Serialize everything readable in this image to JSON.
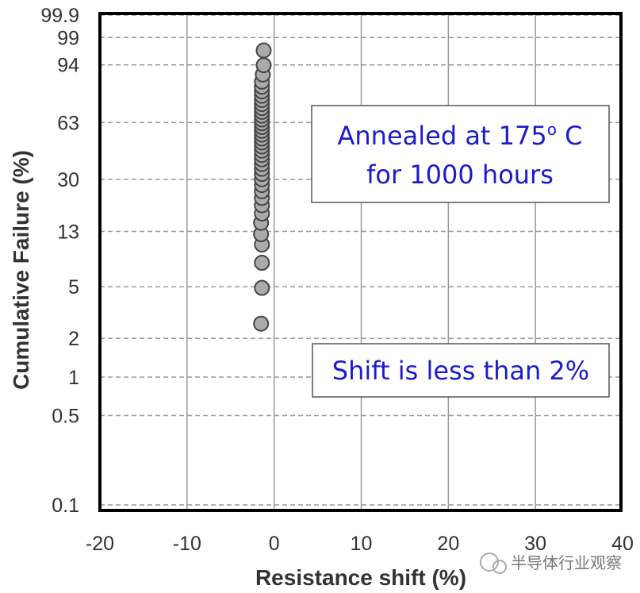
{
  "chart_data": {
    "type": "scatter",
    "title": "",
    "xlabel": "Resistance shift (%)",
    "ylabel": "Cumulative Failure (%)",
    "xlim": [
      -20,
      40
    ],
    "ylim": [
      0.1,
      99.9
    ],
    "yscale": "weibull-probability",
    "x_ticks": [
      "-20",
      "-10",
      "0",
      "10",
      "20",
      "30",
      "40"
    ],
    "y_ticks": [
      "0.1",
      "0.5",
      "1",
      "2",
      "5",
      "13",
      "30",
      "63",
      "94",
      "99",
      "99.9"
    ],
    "grid": true,
    "points": [
      {
        "x": -1.5,
        "y": 2.6
      },
      {
        "x": -1.4,
        "y": 4.9
      },
      {
        "x": -1.4,
        "y": 7.6
      },
      {
        "x": -1.4,
        "y": 10.4
      },
      {
        "x": -1.5,
        "y": 12.4
      },
      {
        "x": -1.5,
        "y": 15.0
      },
      {
        "x": -1.4,
        "y": 17.5
      },
      {
        "x": -1.4,
        "y": 20.0
      },
      {
        "x": -1.4,
        "y": 22.5
      },
      {
        "x": -1.4,
        "y": 25.0
      },
      {
        "x": -1.4,
        "y": 27.5
      },
      {
        "x": -1.4,
        "y": 30.0
      },
      {
        "x": -1.4,
        "y": 32.5
      },
      {
        "x": -1.4,
        "y": 35.0
      },
      {
        "x": -1.4,
        "y": 37.5
      },
      {
        "x": -1.4,
        "y": 40.0
      },
      {
        "x": -1.4,
        "y": 42.5
      },
      {
        "x": -1.4,
        "y": 45.0
      },
      {
        "x": -1.4,
        "y": 47.5
      },
      {
        "x": -1.4,
        "y": 50.0
      },
      {
        "x": -1.4,
        "y": 52.5
      },
      {
        "x": -1.4,
        "y": 55.0
      },
      {
        "x": -1.4,
        "y": 57.5
      },
      {
        "x": -1.4,
        "y": 60.0
      },
      {
        "x": -1.4,
        "y": 62.5
      },
      {
        "x": -1.4,
        "y": 65.0
      },
      {
        "x": -1.4,
        "y": 67.5
      },
      {
        "x": -1.4,
        "y": 70.0
      },
      {
        "x": -1.4,
        "y": 72.5
      },
      {
        "x": -1.4,
        "y": 75.0
      },
      {
        "x": -1.4,
        "y": 77.5
      },
      {
        "x": -1.4,
        "y": 80.0
      },
      {
        "x": -1.4,
        "y": 82.5
      },
      {
        "x": -1.4,
        "y": 85.0
      },
      {
        "x": -1.4,
        "y": 87.5
      },
      {
        "x": -1.3,
        "y": 90.6
      },
      {
        "x": -1.2,
        "y": 93.9
      },
      {
        "x": -1.2,
        "y": 97.4
      }
    ],
    "annotations": [
      {
        "line1": "Annealed at 175",
        "sup": "o",
        "line1_end": " C",
        "line2": "for 1000 hours"
      },
      {
        "text": "Shift is less than 2%"
      }
    ],
    "colors": {
      "marker_fill": "#aaaaaa",
      "marker_edge": "#444444",
      "annotation_text": "#1c1cc8",
      "grid": "#999999"
    }
  },
  "watermark": "半导体行业观察"
}
